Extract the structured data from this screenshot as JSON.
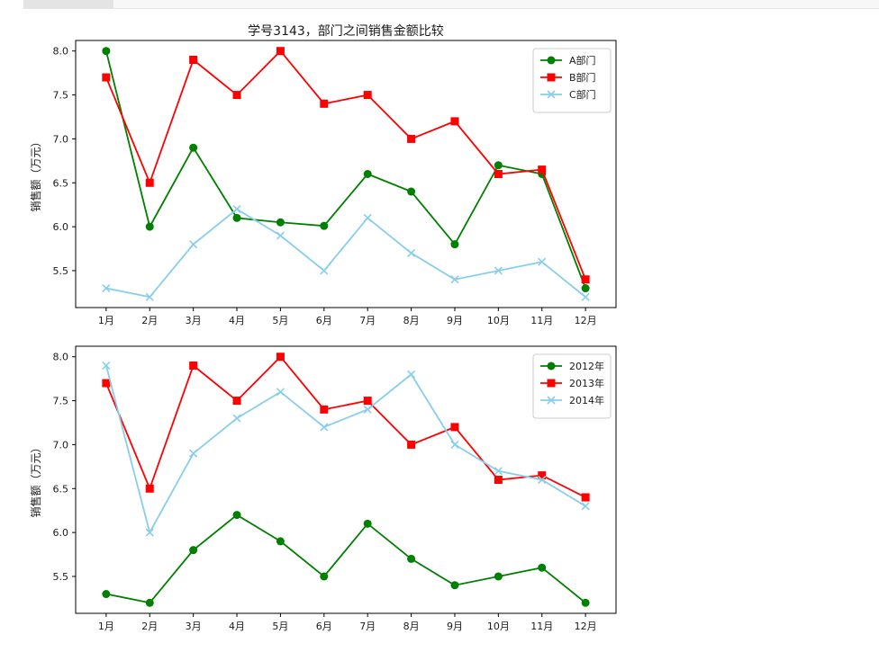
{
  "chart_data": [
    {
      "type": "line",
      "title": "学号3143，部门之间销售金额比较",
      "ylabel": "销售额（万元）",
      "xlabel": "",
      "categories": [
        "1月",
        "2月",
        "3月",
        "4月",
        "5月",
        "6月",
        "7月",
        "8月",
        "9月",
        "10月",
        "11月",
        "12月"
      ],
      "ylim": [
        5.08,
        8.12
      ],
      "yticks": [
        "5.5",
        "6.0",
        "6.5",
        "7.0",
        "7.5",
        "8.0"
      ],
      "legend_position": "upper right",
      "grid": false,
      "series": [
        {
          "name": "A部门",
          "color": "#008000",
          "marker": "circle",
          "values": [
            8.0,
            6.0,
            6.9,
            6.1,
            6.05,
            6.01,
            6.6,
            6.4,
            5.8,
            6.7,
            6.6,
            5.3
          ]
        },
        {
          "name": "B部门",
          "color": "#ff0000",
          "marker": "square",
          "values": [
            7.7,
            6.5,
            7.9,
            7.5,
            8.0,
            7.4,
            7.5,
            7.0,
            7.2,
            6.6,
            6.65,
            5.4
          ]
        },
        {
          "name": "C部门",
          "color": "#87ceeb",
          "marker": "x",
          "values": [
            5.3,
            5.2,
            5.8,
            6.2,
            5.9,
            5.5,
            6.1,
            5.7,
            5.4,
            5.5,
            5.6,
            5.2
          ]
        }
      ]
    },
    {
      "type": "line",
      "title": "",
      "ylabel": "销售额（万元）",
      "xlabel": "",
      "categories": [
        "1月",
        "2月",
        "3月",
        "4月",
        "5月",
        "6月",
        "7月",
        "8月",
        "9月",
        "10月",
        "11月",
        "12月"
      ],
      "ylim": [
        5.08,
        8.12
      ],
      "yticks": [
        "5.5",
        "6.0",
        "6.5",
        "7.0",
        "7.5",
        "8.0"
      ],
      "legend_position": "upper right",
      "grid": false,
      "series": [
        {
          "name": "2012年",
          "color": "#008000",
          "marker": "circle",
          "values": [
            5.3,
            5.2,
            5.8,
            6.2,
            5.9,
            5.5,
            6.1,
            5.7,
            5.4,
            5.5,
            5.6,
            5.2
          ]
        },
        {
          "name": "2013年",
          "color": "#ff0000",
          "marker": "square",
          "values": [
            7.7,
            6.5,
            7.9,
            7.5,
            8.0,
            7.4,
            7.5,
            7.0,
            7.2,
            6.6,
            6.65,
            6.4
          ]
        },
        {
          "name": "2014年",
          "color": "#87ceeb",
          "marker": "x",
          "values": [
            7.9,
            6.0,
            6.9,
            7.3,
            7.6,
            7.2,
            7.4,
            7.8,
            7.0,
            6.7,
            6.6,
            6.3
          ]
        }
      ]
    }
  ]
}
